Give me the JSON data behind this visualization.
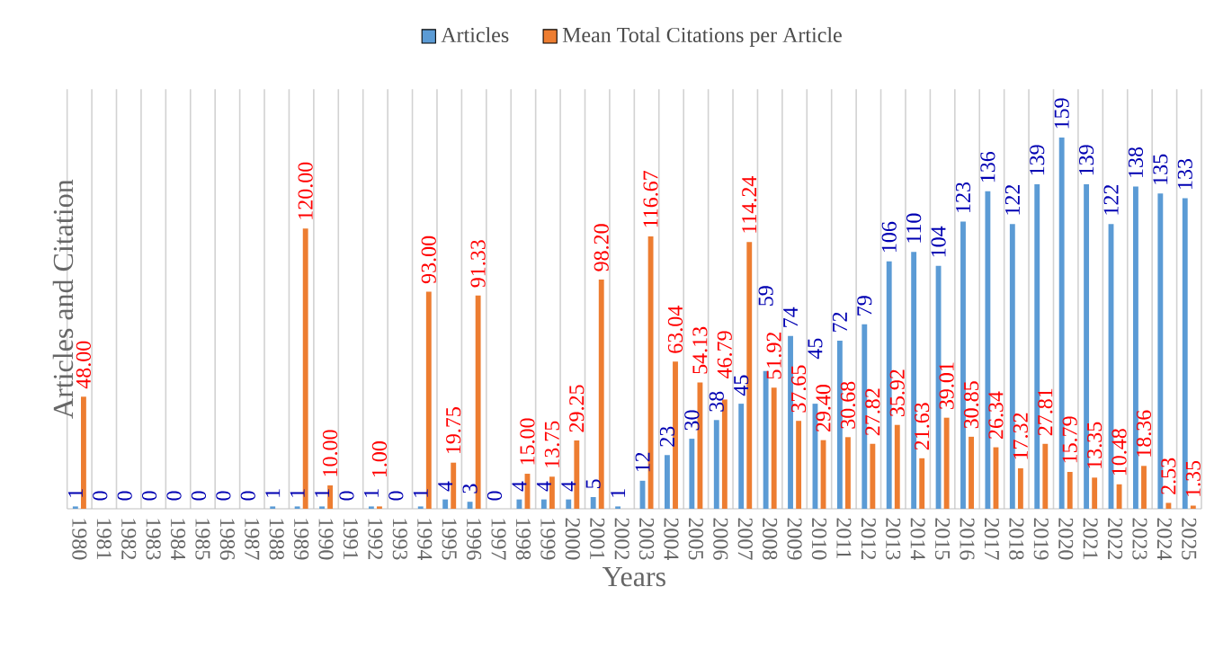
{
  "chart_data": {
    "type": "bar",
    "xlabel": "Years",
    "ylabel": "Articles and Citation",
    "categories": [
      "1980",
      "1981",
      "1982",
      "1983",
      "1984",
      "1985",
      "1986",
      "1987",
      "1988",
      "1989",
      "1990",
      "1991",
      "1992",
      "1993",
      "1994",
      "1995",
      "1996",
      "1997",
      "1998",
      "1999",
      "2000",
      "2001",
      "2002",
      "2003",
      "2004",
      "2005",
      "2006",
      "2007",
      "2008",
      "2009",
      "2010",
      "2011",
      "2012",
      "2013",
      "2014",
      "2015",
      "2016",
      "2017",
      "2018",
      "2019",
      "2020",
      "2021",
      "2022",
      "2023",
      "2024",
      "2025"
    ],
    "series": [
      {
        "name": "Articles",
        "color": "#5b9bd5",
        "values": [
          1,
          0,
          0,
          0,
          0,
          0,
          0,
          0,
          1,
          1,
          1,
          0,
          1,
          0,
          1,
          4,
          3,
          0,
          4,
          4,
          4,
          5,
          1,
          12,
          23,
          30,
          38,
          45,
          59,
          74,
          45,
          72,
          79,
          106,
          110,
          104,
          123,
          136,
          122,
          139,
          159,
          139,
          122,
          138,
          135,
          133
        ],
        "value_labels": [
          "1",
          "0",
          "0",
          "0",
          "0",
          "0",
          "0",
          "0",
          "1",
          "1",
          "1",
          "0",
          "1",
          "0",
          "1",
          "4",
          "3",
          "0",
          "4",
          "4",
          "4",
          "5",
          "1",
          "12",
          "23",
          "30",
          "38",
          "45",
          "59",
          "74",
          "45",
          "72",
          "79",
          "106",
          "110",
          "104",
          "123",
          "136",
          "122",
          "139",
          "159",
          "139",
          "122",
          "138",
          "135",
          "133"
        ]
      },
      {
        "name": "Mean Total Citations per Article",
        "color": "#ed7d31",
        "values": [
          48.0,
          null,
          null,
          null,
          null,
          null,
          null,
          null,
          null,
          120.0,
          10.0,
          null,
          1.0,
          null,
          93.0,
          19.75,
          91.33,
          null,
          15.0,
          13.75,
          29.25,
          98.2,
          null,
          116.67,
          63.04,
          54.13,
          46.79,
          114.24,
          51.92,
          37.65,
          29.4,
          30.68,
          27.82,
          35.92,
          21.63,
          39.01,
          30.85,
          26.34,
          17.32,
          27.81,
          15.79,
          13.35,
          10.48,
          18.36,
          2.53,
          1.35
        ],
        "value_labels": [
          "48.00",
          null,
          null,
          null,
          null,
          null,
          null,
          null,
          null,
          "120.00",
          "10.00",
          null,
          "1.00",
          null,
          "93.00",
          "19.75",
          "91.33",
          null,
          "15.00",
          "13.75",
          "29.25",
          "98.20",
          null,
          "116.67",
          "63.04",
          "54.13",
          "46.79",
          "114.24",
          "51.92",
          "37.65",
          "29.40",
          "30.68",
          "27.82",
          "35.92",
          "21.63",
          "39.01",
          "30.85",
          "26.34",
          "17.32",
          "27.81",
          "15.79",
          "13.35",
          "10.48",
          "18.36",
          "2.53",
          "1.35"
        ]
      }
    ],
    "grid": "x",
    "legend": "top"
  }
}
